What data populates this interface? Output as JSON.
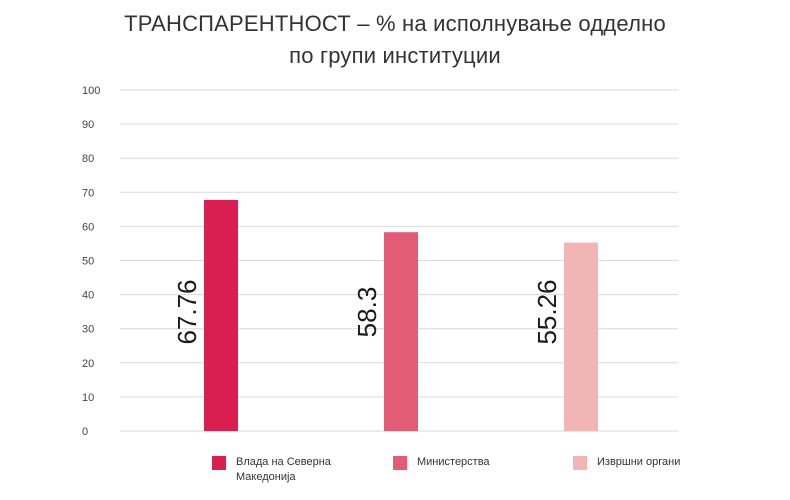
{
  "chart_data": {
    "type": "bar",
    "title_lines": [
      "ТРАНСПАРЕНТНОСТ – % на исполнување одделно",
      "по групи институции"
    ],
    "categories": [
      "Влада на Северна Македонија",
      "Министерства",
      "Извршни органи"
    ],
    "values": [
      67.76,
      58.3,
      55.26
    ],
    "value_labels": [
      "67.76",
      "58.3",
      "55.26"
    ],
    "colors": [
      "#d81f50",
      "#e25c75",
      "#f2b5b5"
    ],
    "ylim": [
      0,
      100
    ],
    "yticks": [
      "0",
      "10",
      "20",
      "30",
      "40",
      "50",
      "60",
      "70",
      "80",
      "90",
      "100"
    ],
    "grid": true,
    "legend_position": "bottom"
  },
  "legend": [
    {
      "label": "Влада на Северна Македонија",
      "color": "#d81f50"
    },
    {
      "label": "Министерства",
      "color": "#e25c75"
    },
    {
      "label": "Извршни органи",
      "color": "#f2b5b5"
    }
  ]
}
